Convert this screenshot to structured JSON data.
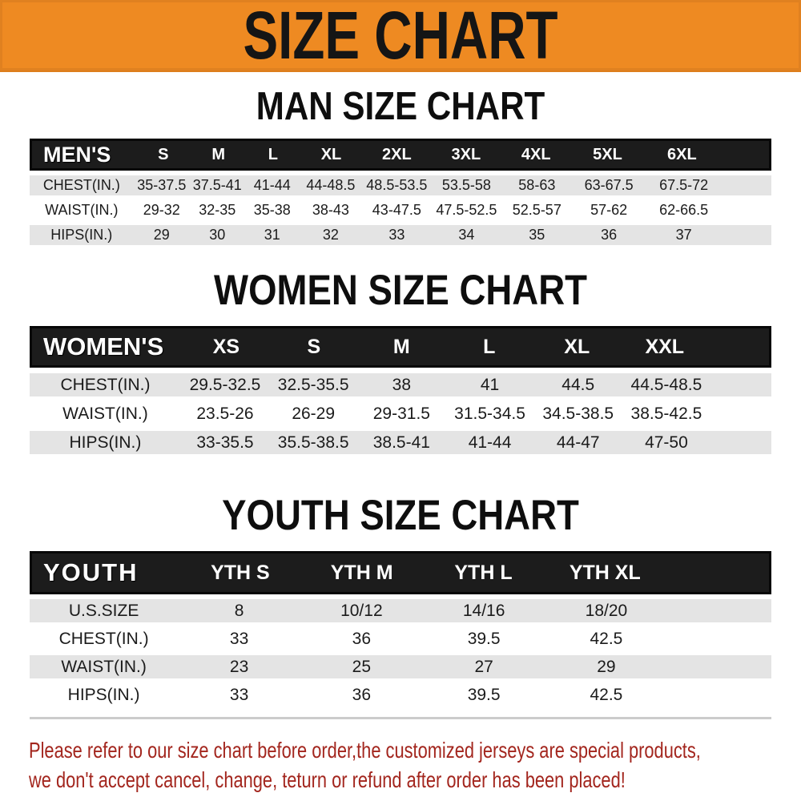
{
  "banner": {
    "title": "SIZE CHART",
    "bg_color": "#EE8A22",
    "text_color": "#151515"
  },
  "sections": [
    {
      "id": "men",
      "title": "MAN SIZE CHART",
      "table_label": "MEN'S",
      "columns": [
        "S",
        "M",
        "L",
        "XL",
        "2XL",
        "3XL",
        "4XL",
        "5XL",
        "6XL"
      ],
      "rows": [
        {
          "label": "CHEST(IN.)",
          "values": [
            "35-37.5",
            "37.5-41",
            "41-44",
            "44-48.5",
            "48.5-53.5",
            "53.5-58",
            "58-63",
            "63-67.5",
            "67.5-72"
          ]
        },
        {
          "label": "WAIST(IN.)",
          "values": [
            "29-32",
            "32-35",
            "35-38",
            "38-43",
            "43-47.5",
            "47.5-52.5",
            "52.5-57",
            "57-62",
            "62-66.5"
          ]
        },
        {
          "label": "HIPS(IN.)",
          "values": [
            "29",
            "30",
            "31",
            "32",
            "33",
            "34",
            "35",
            "36",
            "37"
          ]
        }
      ]
    },
    {
      "id": "women",
      "title": "WOMEN SIZE CHART",
      "table_label": "WOMEN'S",
      "columns": [
        "XS",
        "S",
        "M",
        "L",
        "XL",
        "XXL"
      ],
      "rows": [
        {
          "label": "CHEST(IN.)",
          "values": [
            "29.5-32.5",
            "32.5-35.5",
            "38",
            "41",
            "44.5",
            "44.5-48.5"
          ]
        },
        {
          "label": "WAIST(IN.)",
          "values": [
            "23.5-26",
            "26-29",
            "29-31.5",
            "31.5-34.5",
            "34.5-38.5",
            "38.5-42.5"
          ]
        },
        {
          "label": "HIPS(IN.)",
          "values": [
            "33-35.5",
            "35.5-38.5",
            "38.5-41",
            "41-44",
            "44-47",
            "47-50"
          ]
        }
      ]
    },
    {
      "id": "youth",
      "title": "YOUTH SIZE CHART",
      "table_label": "YOUTH",
      "columns": [
        "YTH S",
        "YTH M",
        "YTH L",
        "YTH XL"
      ],
      "rows": [
        {
          "label": "U.S.SIZE",
          "values": [
            "8",
            "10/12",
            "14/16",
            "18/20"
          ]
        },
        {
          "label": "CHEST(IN.)",
          "values": [
            "33",
            "36",
            "39.5",
            "42.5"
          ]
        },
        {
          "label": "WAIST(IN.)",
          "values": [
            "23",
            "25",
            "27",
            "29"
          ]
        },
        {
          "label": "HIPS(IN.)",
          "values": [
            "33",
            "36",
            "39.5",
            "42.5"
          ]
        }
      ]
    }
  ],
  "footer": {
    "line1": "Please refer to our size chart before order,the customized jerseys are special products,",
    "line2": "we don't accept cancel, change, teturn or refund after order has been placed!",
    "text_color": "#A3261E"
  },
  "colors": {
    "banner_orange": "#EE8A22",
    "header_black": "#1C1C1C",
    "row_shaded_gray": "#E4E4E4",
    "data_text": "#1B1B1B",
    "footer_red": "#A3261E"
  }
}
